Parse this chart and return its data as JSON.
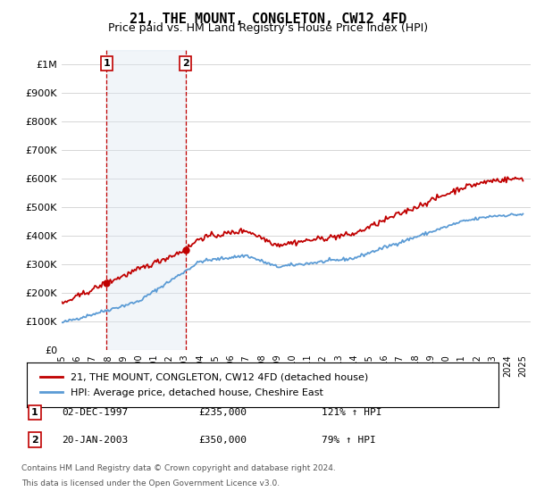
{
  "title": "21, THE MOUNT, CONGLETON, CW12 4FD",
  "subtitle": "Price paid vs. HM Land Registry's House Price Index (HPI)",
  "sale1_date": 1997.92,
  "sale1_price": 235000,
  "sale1_label": "1",
  "sale1_text": "02-DEC-1997",
  "sale1_price_str": "£235,000",
  "sale1_hpi": "121% ↑ HPI",
  "sale2_date": 2003.05,
  "sale2_price": 350000,
  "sale2_label": "2",
  "sale2_text": "20-JAN-2003",
  "sale2_price_str": "£350,000",
  "sale2_hpi": "79% ↑ HPI",
  "legend_line1": "21, THE MOUNT, CONGLETON, CW12 4FD (detached house)",
  "legend_line2": "HPI: Average price, detached house, Cheshire East",
  "footnote1": "Contains HM Land Registry data © Crown copyright and database right 2024.",
  "footnote2": "This data is licensed under the Open Government Licence v3.0.",
  "hpi_color": "#5b9bd5",
  "price_color": "#c00000",
  "shaded_color": "#dce6f1",
  "ylim_min": 0,
  "ylim_max": 1050000,
  "xlim_min": 1995.0,
  "xlim_max": 2025.5,
  "background_color": "#ffffff",
  "grid_color": "#d0d0d0"
}
